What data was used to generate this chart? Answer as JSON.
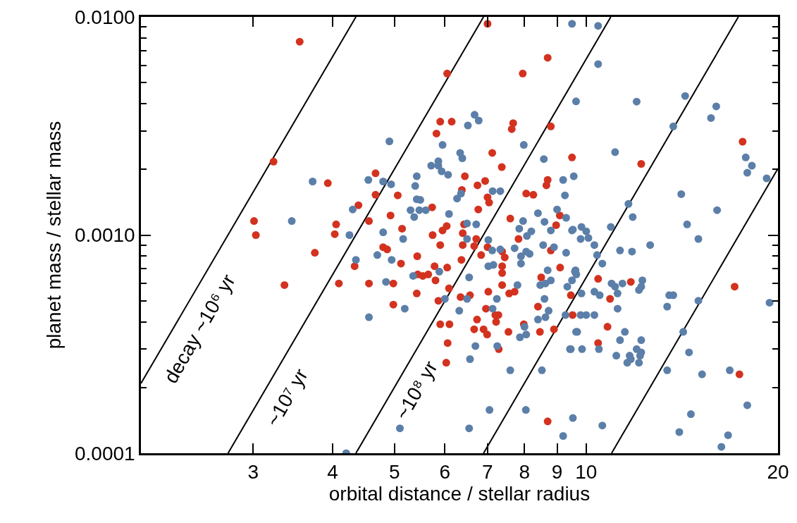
{
  "chart_data": {
    "type": "scatter",
    "xlabel": "orbital distance / stellar radius",
    "ylabel": "planet mass / stellar mass",
    "log": "xy",
    "marker": "circle",
    "xlim": [
      2,
      20
    ],
    "xticks": [
      3,
      4,
      5,
      6,
      7,
      8,
      9,
      10,
      20
    ],
    "ylim": [
      0.0001,
      0.01
    ],
    "yticks": [
      {
        "value": 0.0001,
        "label": "0.0001"
      },
      {
        "value": 0.0002,
        "label": null
      },
      {
        "value": 0.0003,
        "label": null
      },
      {
        "value": 0.0004,
        "label": null
      },
      {
        "value": 0.0005,
        "label": null
      },
      {
        "value": 0.0006,
        "label": null
      },
      {
        "value": 0.0007,
        "label": null
      },
      {
        "value": 0.0008,
        "label": null
      },
      {
        "value": 0.0009,
        "label": null
      },
      {
        "value": 0.001,
        "label": "0.0010"
      },
      {
        "value": 0.002,
        "label": null
      },
      {
        "value": 0.003,
        "label": null
      },
      {
        "value": 0.004,
        "label": null
      },
      {
        "value": 0.005,
        "label": null
      },
      {
        "value": 0.006,
        "label": null
      },
      {
        "value": 0.007,
        "label": null
      },
      {
        "value": 0.008,
        "label": null
      },
      {
        "value": 0.009,
        "label": null
      },
      {
        "value": 0.01,
        "label": "0.0100"
      }
    ],
    "annotations": [
      "decay ~10⁶ yr",
      "~10⁷ yr",
      "~10⁸ yr"
    ],
    "series": [
      {
        "type": "line",
        "marker": "none",
        "color": "#000000",
        "x": [
          2.0,
          4.35
        ],
        "values": [
          0.000209,
          0.01
        ]
      },
      {
        "type": "line",
        "marker": "none",
        "color": "#000000",
        "x": [
          2.74,
          6.9
        ],
        "values": [
          0.0001,
          0.01
        ]
      },
      {
        "type": "line",
        "marker": "none",
        "color": "#000000",
        "x": [
          4.35,
          10.93
        ],
        "values": [
          0.0001,
          0.01
        ]
      },
      {
        "type": "line",
        "marker": "none",
        "color": "#000000",
        "x": [
          6.9,
          17.33
        ],
        "values": [
          0.0001,
          0.01
        ]
      },
      {
        "type": "line",
        "marker": "none",
        "color": "#000000",
        "x": [
          10.96,
          20
        ],
        "values": [
          0.0001,
          0.00202
        ]
      },
      {
        "color": "#d3321f",
        "x": [
          3.93,
          4.05,
          4.03,
          4.39,
          7.0,
          6.05,
          8.7,
          7.95,
          5.9,
          6.15,
          7.68,
          7.64,
          8.8,
          5.82,
          7.12,
          7.37,
          9.5,
          4.67,
          4.67,
          5.06,
          6.45,
          6.94,
          6.75,
          6.38,
          7.0,
          7.04,
          8.05,
          8.26,
          8.7,
          8.66,
          6.77,
          5.73,
          4.93,
          4.56,
          5.14,
          5.74,
          5.95,
          6.04,
          6.43,
          6.4,
          6.72,
          7.6,
          7.83,
          8.97,
          9.09,
          17.6,
          12.2,
          3.75,
          3.36,
          4.09,
          4.33,
          5.9,
          6.4,
          6.67,
          6.84,
          7.0,
          7.38,
          7.45,
          7.38,
          7.38,
          8.8,
          9.1,
          8.5,
          9.46,
          8.4,
          8.46,
          8.9,
          9.52,
          7.98,
          7.55,
          7.2,
          7.28,
          6.96,
          6.74,
          6.67,
          6.9,
          6.99,
          7.22,
          7.29,
          7.02,
          7.38,
          7.57,
          7.72,
          6.37,
          6.35,
          6.57,
          6.05,
          6.09,
          5.78,
          5.43,
          5.44,
          5.54,
          5.65,
          5.8,
          5.42,
          5.86,
          5.9,
          6.1,
          6.06,
          6.03,
          5.12,
          4.8,
          4.87,
          4.98,
          4.56,
          4.98,
          8.7,
          10.44,
          11.75,
          10.9,
          17.1,
          10.8,
          10.44,
          17.4
        ],
        "values": [
          0.00173,
          0.00112,
          0.00101,
          0.00137,
          0.0093,
          0.0055,
          0.0065,
          0.0055,
          0.00331,
          0.00331,
          0.00326,
          0.00306,
          0.00315,
          0.00292,
          0.00238,
          0.00205,
          0.00227,
          0.00192,
          0.00153,
          0.00152,
          0.00186,
          0.00177,
          0.00169,
          0.00161,
          0.00149,
          0.00141,
          0.00155,
          0.00153,
          0.00179,
          0.00169,
          0.00131,
          0.00134,
          0.00123,
          0.00116,
          0.00107,
          0.001,
          0.00105,
          0.0011,
          0.00112,
          0.00102,
          0.00096,
          0.00119,
          0.00096,
          0.00111,
          0.00123,
          0.00268,
          0.00212,
          0.00083,
          0.00059,
          0.0006,
          0.00072,
          0.0009,
          0.0009,
          0.00089,
          0.00081,
          0.00088,
          0.00084,
          0.00079,
          0.00072,
          0.00067,
          0.00085,
          0.00071,
          0.00064,
          0.00053,
          0.00047,
          0.00036,
          0.00037,
          0.00043,
          0.00039,
          0.00036,
          0.00043,
          0.00043,
          0.00046,
          0.00041,
          0.00037,
          0.00037,
          0.00035,
          0.0004,
          0.0003,
          0.00055,
          0.00059,
          0.00054,
          0.00055,
          0.00077,
          0.00052,
          0.00053,
          0.00071,
          0.00057,
          0.00072,
          0.0008,
          0.00066,
          0.00065,
          0.00066,
          0.00062,
          0.00054,
          0.0005,
          0.00039,
          0.00039,
          0.00032,
          0.00026,
          0.00074,
          0.00088,
          0.00086,
          0.0006,
          0.0006,
          0.00048,
          0.00014,
          0.00063,
          0.00061,
          0.00051,
          0.00058,
          0.00038,
          0.00032,
          0.00023
        ]
      },
      {
        "color": "#5b7fa9",
        "x": [
          9.5,
          9.64,
          6.68,
          6.78,
          6.52,
          5.95,
          7.98,
          6.34,
          6.39,
          8.58,
          5.86,
          5.71,
          5.86,
          5.93,
          6.07,
          4.8,
          4.94,
          5.42,
          5.39,
          5.42,
          5.49,
          6.36,
          6.27,
          7.13,
          7.33,
          9.2,
          9.56,
          9.26,
          5.3,
          5.37,
          5.47,
          5.6,
          6.09,
          4.8,
          5.16,
          6.5,
          6.5,
          6.72,
          7.96,
          7.85,
          8.07,
          8.2,
          8.4,
          8.6,
          9.0,
          9.3,
          8.8,
          9.5,
          7.02,
          10.44,
          10.44,
          12.0,
          14.3,
          16.0,
          15.7,
          13.7,
          17.8,
          18.2,
          17.9,
          19.2,
          11.1,
          14.1,
          16.05,
          11.65,
          11.83,
          10.93,
          14.4,
          15.0,
          9.53,
          9.83,
          10.0,
          9.8,
          10.08,
          4.35,
          4.2,
          7.12,
          7.33,
          7.72,
          7.9,
          8.05,
          8.15,
          7.9,
          8.56,
          8.9,
          9.3,
          9.6,
          8.7,
          8.47,
          8.63,
          8.8,
          9.34,
          8.6,
          8.73,
          8.63,
          8.4,
          9.28,
          9.64,
          9.43,
          8.52,
          8.0,
          7.87,
          8.05,
          7.13,
          7.25,
          6.7,
          6.57,
          7.6,
          7.8,
          7.24,
          7.02,
          7.15,
          6.55,
          6.5,
          6.32,
          5.88,
          5.35,
          6.0,
          4.7,
          4.95,
          4.85,
          5.19,
          4.56,
          5.1,
          6.55,
          7.05,
          8.04,
          9.53,
          9.2,
          12.6,
          11.3,
          11.8,
          10.3,
          10.4,
          10.6,
          9.62,
          9.65,
          9.5,
          11.4,
          10.96,
          11.1,
          11.2,
          12.25,
          12.2,
          12.1,
          9.83,
          10.3,
          10.5,
          11.2,
          13.5,
          13.7,
          13.4,
          15.0,
          19.4,
          9.8,
          10.0,
          10.3,
          9.68,
          11.5,
          11.3,
          12.2,
          10.47,
          9.46,
          9.85,
          11.15,
          11.7,
          11.75,
          11.6,
          12.0,
          12.2,
          12.15,
          12.1,
          14.2,
          14.5,
          13.4,
          15.2,
          16.8,
          17.9,
          14.6,
          14.0,
          16.7,
          16.3,
          10.6
        ],
        "values": [
          0.0093,
          0.0041,
          0.00356,
          0.00335,
          0.00318,
          0.00259,
          0.00259,
          0.00238,
          0.00225,
          0.00223,
          0.00218,
          0.00208,
          0.00208,
          0.00196,
          0.00189,
          0.00176,
          0.00171,
          0.00186,
          0.00168,
          0.00146,
          0.00145,
          0.00155,
          0.00147,
          0.00159,
          0.00159,
          0.00179,
          0.00186,
          0.00152,
          0.0013,
          0.00121,
          0.0013,
          0.0013,
          0.00125,
          0.00103,
          0.00096,
          0.00113,
          0.00096,
          0.00112,
          0.00116,
          0.00107,
          0.00099,
          0.00104,
          0.00126,
          0.00115,
          0.00131,
          0.0012,
          0.00105,
          0.00105,
          0.00095,
          0.0091,
          0.00608,
          0.00409,
          0.00434,
          0.00389,
          0.00344,
          0.00315,
          0.00227,
          0.00208,
          0.00193,
          0.00182,
          0.0024,
          0.00154,
          0.0013,
          0.00139,
          0.00121,
          0.00109,
          0.00112,
          0.00096,
          0.00106,
          0.00109,
          0.00104,
          0.00096,
          0.00097,
          0.00077,
          0.0001,
          0.00085,
          0.00086,
          0.00087,
          0.0008,
          0.00084,
          0.00082,
          0.00074,
          0.0009,
          0.00088,
          0.00083,
          0.00068,
          0.00069,
          0.00059,
          0.0006,
          0.00062,
          0.00058,
          0.00051,
          0.00045,
          0.00042,
          0.00041,
          0.00043,
          0.00036,
          0.0003,
          0.00024,
          0.00038,
          0.00034,
          0.00035,
          0.00046,
          0.00031,
          0.00031,
          0.00027,
          0.00024,
          0.00059,
          0.00051,
          0.00072,
          0.00073,
          0.00064,
          0.00051,
          0.00045,
          0.00068,
          0.00065,
          0.00051,
          0.00081,
          0.00077,
          0.00061,
          0.00046,
          0.00042,
          0.00013,
          0.00013,
          0.000158,
          0.000158,
          0.000145,
          0.00012,
          0.0009,
          0.00085,
          0.00084,
          0.0009,
          0.00081,
          0.00074,
          0.00069,
          0.00066,
          0.00062,
          0.0006,
          0.0006,
          0.00058,
          0.00054,
          0.00062,
          0.00058,
          0.00056,
          0.00054,
          0.00055,
          0.00053,
          0.00046,
          0.00053,
          0.00053,
          0.00047,
          0.0005,
          0.00049,
          0.00043,
          0.00043,
          0.00043,
          0.00036,
          0.00036,
          0.00033,
          0.00033,
          0.0003,
          0.0003,
          0.0003,
          0.00028,
          0.00028,
          0.00027,
          0.00026,
          0.0003,
          0.00029,
          0.00028,
          0.00026,
          0.00036,
          0.00029,
          0.00024,
          0.00023,
          0.00024,
          0.000166,
          0.000151,
          0.000125,
          0.000121,
          0.000107,
          0.000134
        ]
      },
      {
        "color": "#d3321f",
        "x": [
          3.55,
          3.23,
          3.01,
          3.03
        ],
        "values": [
          0.0077,
          0.00217,
          0.00116,
          0.001
        ]
      },
      {
        "color": "#5b7fa9",
        "x": [
          3.72,
          4.3,
          3.45,
          4.25,
          4.91,
          4.55
        ],
        "values": [
          0.00176,
          0.00131,
          0.00116,
          0.001,
          0.00269,
          0.00179
        ]
      }
    ]
  }
}
